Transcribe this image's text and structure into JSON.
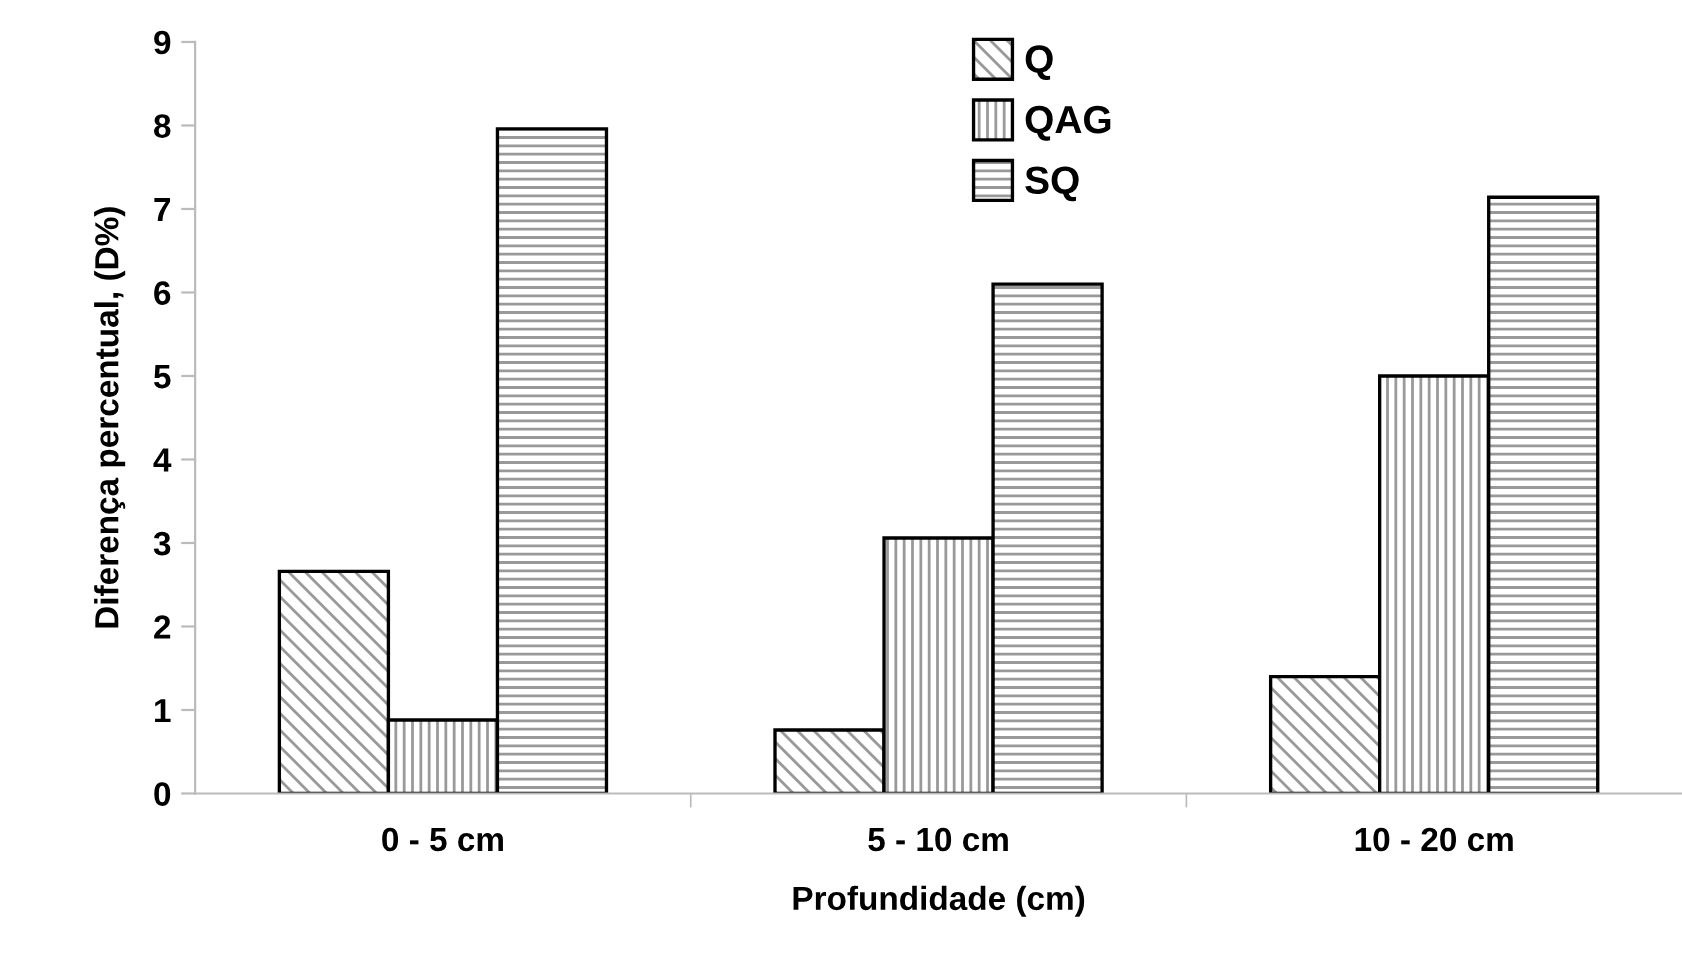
{
  "chart_data": {
    "type": "bar",
    "xlabel": "Profundidade (cm)",
    "ylabel": "Diferença percentual, (D%)",
    "categories": [
      "0 - 5 cm",
      "5 - 10 cm",
      "10 - 20 cm"
    ],
    "series": [
      {
        "name": "Q",
        "color": "#000000",
        "values": [
          2.66,
          0.76,
          1.4
        ]
      },
      {
        "name": "QAG",
        "color": "#000000",
        "values": [
          0.88,
          3.06,
          5.0
        ]
      },
      {
        "name": "SQ",
        "color": "#000000",
        "values": [
          7.96,
          6.1,
          7.14
        ]
      }
    ],
    "ylim": [
      0,
      9
    ],
    "yticks": [
      0,
      1,
      2,
      3,
      4,
      5,
      6,
      7,
      8,
      9
    ],
    "grid": false,
    "legend": "top right"
  }
}
